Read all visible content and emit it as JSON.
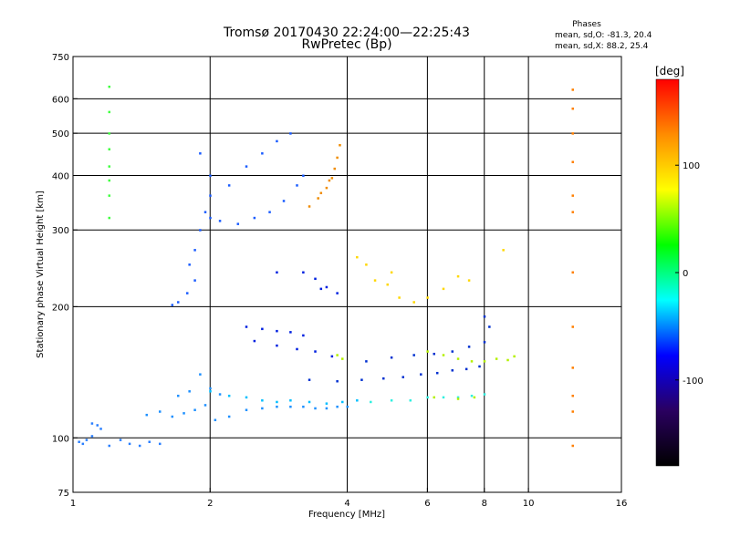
{
  "chart_data": {
    "type": "scatter",
    "title": "Tromsø 20170430 22:24:00—22:25:43",
    "subtitle": "RwPretec (Bp)",
    "xlabel": "Frequency [MHz]",
    "ylabel": "Stationary phase Virtual Height [km]",
    "x_scale": "log",
    "y_scale": "log",
    "xlim": [
      1,
      16
    ],
    "ylim": [
      75,
      750
    ],
    "x_ticks": [
      1,
      2,
      4,
      6,
      8,
      10,
      16
    ],
    "x_tick_labels": [
      "1",
      "2",
      "4",
      "6",
      "8",
      "10",
      "16"
    ],
    "y_ticks": [
      75,
      100,
      200,
      300,
      400,
      500,
      600,
      750
    ],
    "y_tick_labels": [
      "75",
      "100",
      "200",
      "300",
      "400",
      "500",
      "600",
      "750"
    ],
    "x_gridlines": [
      2,
      4,
      6,
      8,
      10
    ],
    "y_gridlines": [
      100,
      200,
      300,
      400,
      500,
      600
    ],
    "phases_box": {
      "title": "Phases",
      "line1": "mean, sd,O:  -81.3, 20.4",
      "line2": "mean, sd,X:  88.2, 25.4"
    },
    "colorbar": {
      "label": "[deg]",
      "min": -180,
      "max": 180,
      "ticks": [
        100,
        0,
        -100
      ],
      "tick_labels": [
        "100",
        "0",
        "-100"
      ],
      "colors": [
        "#ff0000",
        "#ff8c00",
        "#ffff00",
        "#00ff00",
        "#00ffff",
        "#0000ff",
        "#2a0060",
        "#000000"
      ]
    },
    "series": [
      {
        "id": "low-band",
        "color": "#2a7fff",
        "points": [
          [
            1.03,
            98
          ],
          [
            1.05,
            97
          ],
          [
            1.07,
            99
          ],
          [
            1.1,
            108
          ],
          [
            1.13,
            107
          ],
          [
            1.15,
            105
          ],
          [
            1.2,
            96
          ],
          [
            1.27,
            99
          ],
          [
            1.33,
            97
          ],
          [
            1.4,
            96
          ],
          [
            1.47,
            98
          ],
          [
            1.55,
            97
          ],
          [
            1.1,
            101
          ]
        ]
      },
      {
        "id": "e-trace",
        "color": "#1e90ff",
        "points": [
          [
            1.45,
            113
          ],
          [
            1.55,
            115
          ],
          [
            1.65,
            112
          ],
          [
            1.75,
            114
          ],
          [
            1.85,
            116
          ],
          [
            1.95,
            119
          ],
          [
            2.05,
            110
          ],
          [
            2.2,
            112
          ],
          [
            2.4,
            116
          ],
          [
            2.6,
            117
          ],
          [
            2.8,
            118
          ],
          [
            3.0,
            118
          ],
          [
            3.2,
            118
          ],
          [
            3.4,
            117
          ],
          [
            3.6,
            117
          ],
          [
            3.8,
            118
          ],
          [
            4.0,
            118
          ],
          [
            1.7,
            125
          ],
          [
            1.8,
            128
          ],
          [
            2.0,
            130
          ],
          [
            2.1,
            126
          ],
          [
            1.9,
            140
          ]
        ]
      },
      {
        "id": "e-trace-x",
        "color": "#00bfff",
        "points": [
          [
            2.0,
            128
          ],
          [
            2.2,
            125
          ],
          [
            2.4,
            124
          ],
          [
            2.6,
            122
          ],
          [
            2.8,
            121
          ],
          [
            3.0,
            122
          ],
          [
            3.3,
            121
          ],
          [
            3.6,
            120
          ],
          [
            3.9,
            121
          ],
          [
            4.2,
            122
          ]
        ]
      },
      {
        "id": "low-f-trace",
        "color": "#1a5cff",
        "points": [
          [
            1.65,
            202
          ],
          [
            1.7,
            205
          ],
          [
            1.78,
            215
          ],
          [
            1.85,
            230
          ],
          [
            1.8,
            250
          ],
          [
            1.85,
            270
          ],
          [
            1.9,
            300
          ],
          [
            1.95,
            330
          ],
          [
            2.0,
            320
          ],
          [
            2.1,
            315
          ],
          [
            2.3,
            310
          ],
          [
            2.5,
            320
          ],
          [
            2.7,
            330
          ],
          [
            2.9,
            350
          ],
          [
            3.1,
            380
          ],
          [
            3.2,
            400
          ],
          [
            2.6,
            450
          ],
          [
            2.8,
            480
          ],
          [
            3.0,
            500
          ],
          [
            2.4,
            420
          ],
          [
            2.2,
            380
          ],
          [
            2.0,
            360
          ],
          [
            1.9,
            450
          ],
          [
            2.0,
            400
          ]
        ]
      },
      {
        "id": "f-trace-o",
        "color": "#0020e0",
        "points": [
          [
            2.4,
            180
          ],
          [
            2.6,
            178
          ],
          [
            2.8,
            176
          ],
          [
            3.0,
            175
          ],
          [
            3.2,
            172
          ],
          [
            2.5,
            167
          ],
          [
            2.8,
            163
          ],
          [
            3.1,
            160
          ],
          [
            3.4,
            158
          ],
          [
            3.7,
            154
          ],
          [
            3.4,
            232
          ],
          [
            3.6,
            222
          ],
          [
            3.8,
            215
          ],
          [
            3.5,
            220
          ],
          [
            3.2,
            240
          ],
          [
            2.8,
            240
          ]
        ]
      },
      {
        "id": "f2-o",
        "color": "#0030d0",
        "points": [
          [
            3.3,
            136
          ],
          [
            3.8,
            135
          ],
          [
            4.3,
            136
          ],
          [
            4.8,
            137
          ],
          [
            5.3,
            138
          ],
          [
            5.8,
            140
          ],
          [
            6.3,
            141
          ],
          [
            6.8,
            143
          ],
          [
            7.3,
            144
          ],
          [
            7.8,
            146
          ],
          [
            4.4,
            150
          ],
          [
            5.0,
            153
          ],
          [
            5.6,
            155
          ],
          [
            6.2,
            156
          ],
          [
            6.8,
            158
          ],
          [
            7.4,
            162
          ],
          [
            8.0,
            166
          ],
          [
            8.2,
            180
          ],
          [
            8.0,
            190
          ]
        ]
      },
      {
        "id": "f2-x-mid",
        "color": "#30f0e0",
        "points": [
          [
            4.5,
            121
          ],
          [
            5.0,
            122
          ],
          [
            5.5,
            122
          ],
          [
            6.0,
            124
          ],
          [
            6.5,
            124
          ],
          [
            7.0,
            124
          ],
          [
            7.5,
            125
          ],
          [
            8.0,
            126
          ]
        ]
      },
      {
        "id": "f2-x-yellow",
        "color": "#b4f000",
        "points": [
          [
            6.0,
            158
          ],
          [
            6.5,
            155
          ],
          [
            7.0,
            152
          ],
          [
            7.5,
            150
          ],
          [
            8.0,
            150
          ],
          [
            8.5,
            152
          ],
          [
            9.0,
            151
          ],
          [
            9.3,
            154
          ],
          [
            6.2,
            124
          ],
          [
            7.0,
            123
          ],
          [
            7.6,
            124
          ],
          [
            3.8,
            155
          ],
          [
            3.9,
            152
          ]
        ]
      },
      {
        "id": "x-trace-orange",
        "color": "#f08c00",
        "points": [
          [
            3.3,
            340
          ],
          [
            3.45,
            355
          ],
          [
            3.6,
            375
          ],
          [
            3.7,
            395
          ],
          [
            3.75,
            415
          ],
          [
            3.8,
            440
          ],
          [
            3.85,
            470
          ],
          [
            3.5,
            365
          ],
          [
            3.65,
            390
          ]
        ]
      },
      {
        "id": "scatter-mid",
        "color": "#ffd700",
        "points": [
          [
            4.4,
            250
          ],
          [
            4.6,
            230
          ],
          [
            4.9,
            225
          ],
          [
            5.2,
            210
          ],
          [
            5.6,
            205
          ],
          [
            6.0,
            210
          ],
          [
            6.5,
            220
          ],
          [
            7.0,
            235
          ],
          [
            7.4,
            230
          ],
          [
            4.2,
            260
          ],
          [
            5.0,
            240
          ],
          [
            8.8,
            270
          ]
        ]
      },
      {
        "id": "vertical-1.2",
        "color": "#40ff40",
        "points": [
          [
            1.2,
            640
          ],
          [
            1.2,
            560
          ],
          [
            1.2,
            500
          ],
          [
            1.2,
            460
          ],
          [
            1.2,
            420
          ],
          [
            1.2,
            390
          ],
          [
            1.2,
            360
          ],
          [
            1.2,
            320
          ]
        ]
      },
      {
        "id": "vertical-12",
        "color": "#ff7f00",
        "points": [
          [
            12.5,
            630
          ],
          [
            12.5,
            570
          ],
          [
            12.5,
            500
          ],
          [
            12.5,
            430
          ],
          [
            12.5,
            360
          ],
          [
            12.5,
            330
          ],
          [
            12.5,
            240
          ],
          [
            12.5,
            180
          ],
          [
            12.5,
            145
          ],
          [
            12.5,
            125
          ],
          [
            12.5,
            115
          ],
          [
            12.5,
            96
          ]
        ]
      }
    ]
  }
}
